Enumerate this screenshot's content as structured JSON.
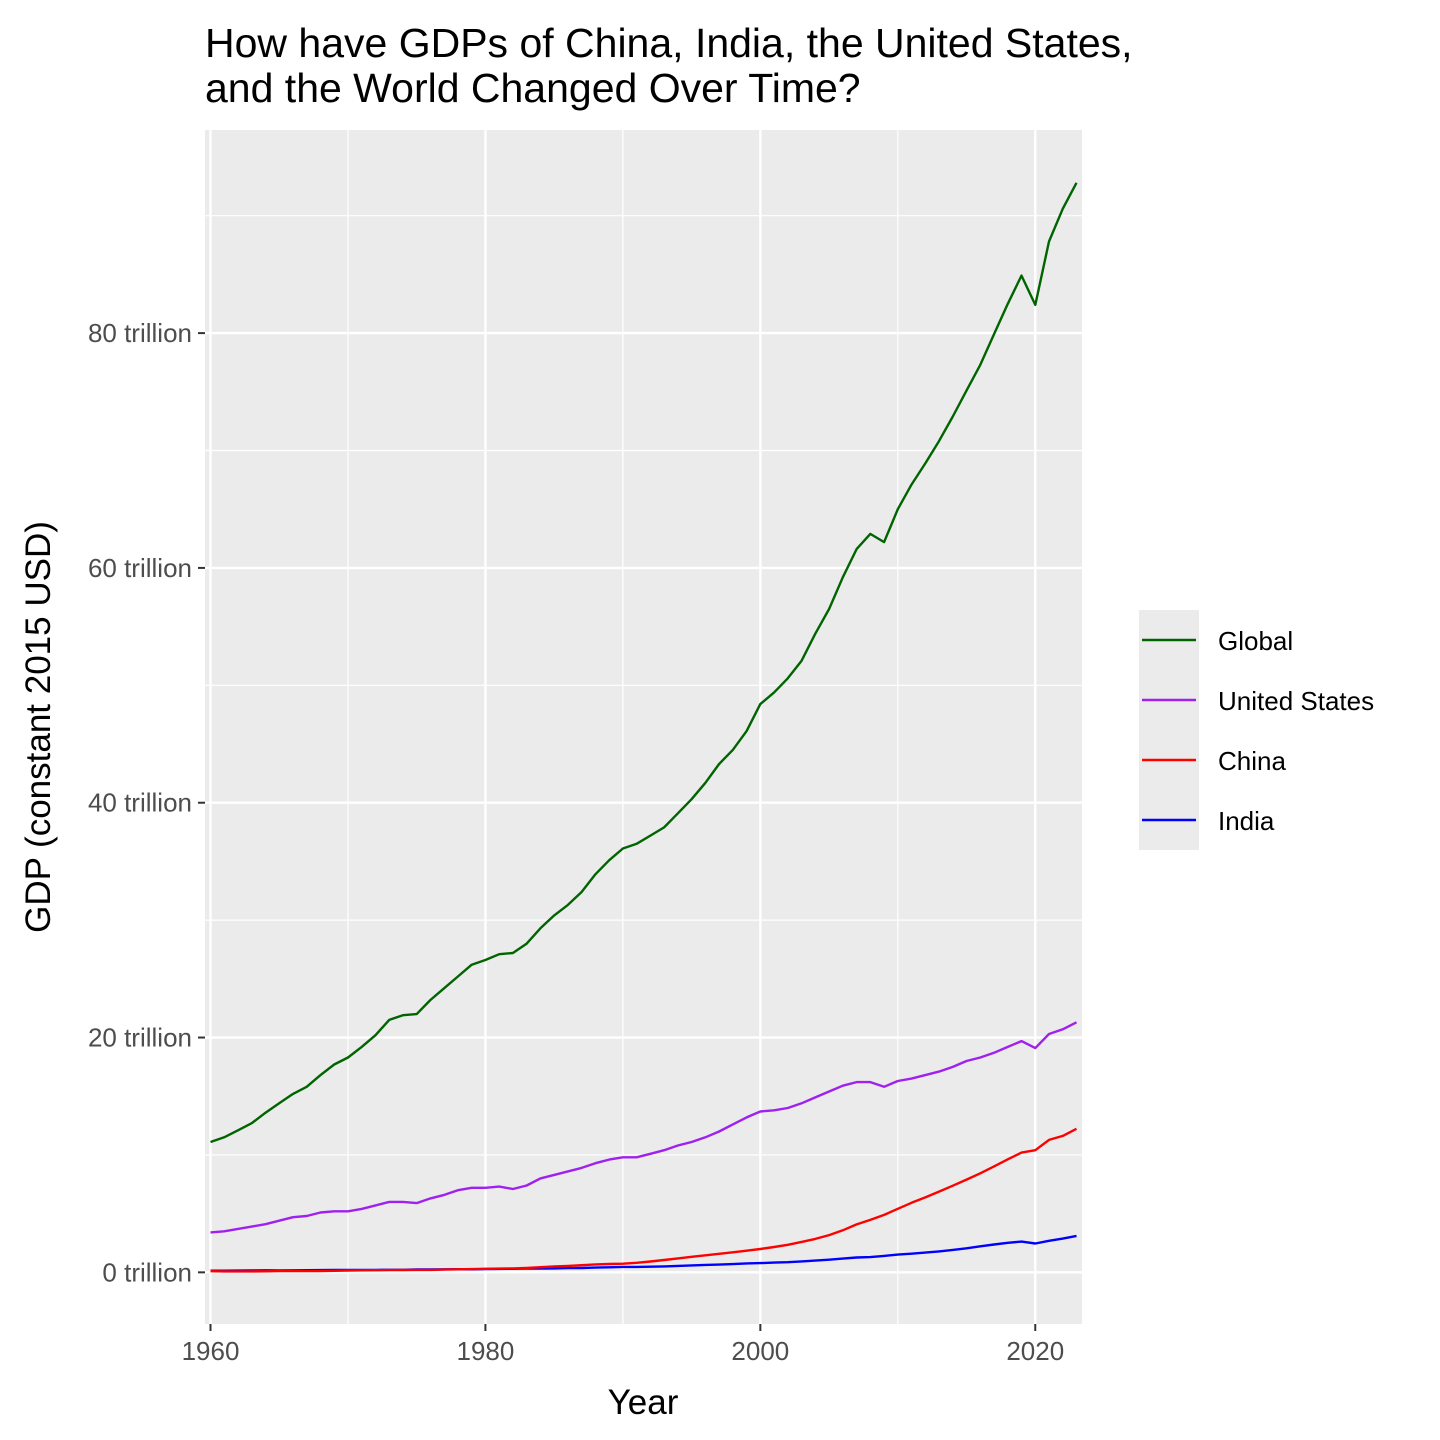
{
  "chart_data": {
    "type": "line",
    "title": [
      "How have GDPs of China, India, the United States,",
      "and the World Changed Over Time?"
    ],
    "xlabel": "Year",
    "ylabel": "GDP (constant 2015 USD)",
    "xlim": [
      1959.6,
      2023.4
    ],
    "ylim": [
      -4.4,
      97.3
    ],
    "x_ticks": [
      1960,
      1980,
      2000,
      2020
    ],
    "x_tick_labels": [
      "1960",
      "1980",
      "2000",
      "2020"
    ],
    "y_ticks": [
      0,
      20,
      40,
      60,
      80
    ],
    "y_tick_labels": [
      "0 trillion",
      "20 trillion",
      "40 trillion",
      "60 trillion",
      "80 trillion"
    ],
    "y_units": "trillion constant 2015 USD",
    "grid": true,
    "legend_position": "right",
    "legend_labels": [
      "Global",
      "United States",
      "China",
      "India"
    ],
    "x": [
      1960,
      1961,
      1962,
      1963,
      1964,
      1965,
      1966,
      1967,
      1968,
      1969,
      1970,
      1971,
      1972,
      1973,
      1974,
      1975,
      1976,
      1977,
      1978,
      1979,
      1980,
      1981,
      1982,
      1983,
      1984,
      1985,
      1986,
      1987,
      1988,
      1989,
      1990,
      1991,
      1992,
      1993,
      1994,
      1995,
      1996,
      1997,
      1998,
      1999,
      2000,
      2001,
      2002,
      2003,
      2004,
      2005,
      2006,
      2007,
      2008,
      2009,
      2010,
      2011,
      2012,
      2013,
      2014,
      2015,
      2016,
      2017,
      2018,
      2019,
      2020,
      2021,
      2022,
      2023
    ],
    "series": [
      {
        "name": "Global",
        "color": "#006400",
        "values": [
          11.1,
          11.5,
          12.1,
          12.7,
          13.6,
          14.4,
          15.2,
          15.8,
          16.8,
          17.7,
          18.3,
          19.2,
          20.2,
          21.5,
          21.9,
          22.0,
          23.2,
          24.2,
          25.2,
          26.2,
          26.6,
          27.1,
          27.2,
          28.0,
          29.3,
          30.4,
          31.3,
          32.4,
          33.9,
          35.1,
          36.1,
          36.5,
          37.2,
          37.9,
          39.1,
          40.3,
          41.7,
          43.3,
          44.5,
          46.1,
          48.4,
          49.4,
          50.6,
          52.1,
          54.4,
          56.5,
          59.2,
          61.6,
          62.9,
          62.2,
          65.0,
          67.1,
          68.9,
          70.8,
          72.9,
          75.1,
          77.3,
          79.9,
          82.5,
          84.9,
          82.4,
          87.8,
          90.6,
          92.8
        ]
      },
      {
        "name": "United States",
        "color": "#a020f0",
        "values": [
          3.4,
          3.5,
          3.7,
          3.9,
          4.1,
          4.4,
          4.7,
          4.8,
          5.1,
          5.2,
          5.2,
          5.4,
          5.7,
          6.0,
          6.0,
          5.9,
          6.3,
          6.6,
          7.0,
          7.2,
          7.2,
          7.3,
          7.1,
          7.4,
          8.0,
          8.3,
          8.6,
          8.9,
          9.3,
          9.6,
          9.8,
          9.8,
          10.1,
          10.4,
          10.8,
          11.1,
          11.5,
          12.0,
          12.6,
          13.2,
          13.7,
          13.8,
          14.0,
          14.4,
          14.9,
          15.4,
          15.9,
          16.2,
          16.2,
          15.8,
          16.3,
          16.5,
          16.8,
          17.1,
          17.5,
          18.0,
          18.3,
          18.7,
          19.2,
          19.7,
          19.1,
          20.3,
          20.7,
          21.3
        ]
      },
      {
        "name": "China",
        "color": "#ff0000",
        "values": [
          0.1,
          0.08,
          0.08,
          0.08,
          0.09,
          0.11,
          0.12,
          0.11,
          0.11,
          0.13,
          0.16,
          0.17,
          0.18,
          0.19,
          0.2,
          0.21,
          0.21,
          0.23,
          0.26,
          0.28,
          0.3,
          0.32,
          0.34,
          0.38,
          0.44,
          0.5,
          0.55,
          0.61,
          0.68,
          0.71,
          0.74,
          0.81,
          0.92,
          1.05,
          1.19,
          1.32,
          1.45,
          1.58,
          1.71,
          1.84,
          1.99,
          2.16,
          2.35,
          2.59,
          2.85,
          3.17,
          3.58,
          4.08,
          4.47,
          4.89,
          5.41,
          5.92,
          6.38,
          6.88,
          7.38,
          7.9,
          8.44,
          9.02,
          9.63,
          10.2,
          10.4,
          11.28,
          11.62,
          12.23
        ]
      },
      {
        "name": "India",
        "color": "#0000ff",
        "values": [
          0.14,
          0.14,
          0.15,
          0.16,
          0.17,
          0.16,
          0.17,
          0.18,
          0.19,
          0.2,
          0.21,
          0.21,
          0.21,
          0.22,
          0.22,
          0.24,
          0.24,
          0.26,
          0.27,
          0.26,
          0.28,
          0.29,
          0.3,
          0.32,
          0.33,
          0.34,
          0.36,
          0.37,
          0.4,
          0.43,
          0.46,
          0.46,
          0.48,
          0.51,
          0.55,
          0.59,
          0.63,
          0.66,
          0.7,
          0.76,
          0.79,
          0.83,
          0.86,
          0.93,
          1.0,
          1.08,
          1.17,
          1.26,
          1.3,
          1.4,
          1.51,
          1.59,
          1.68,
          1.78,
          1.91,
          2.05,
          2.22,
          2.37,
          2.52,
          2.62,
          2.46,
          2.69,
          2.87,
          3.1
        ]
      }
    ]
  },
  "colors": {
    "panel_background": "#ebebeb",
    "grid_major": "#ffffff",
    "axis_text": "#4d4d4d"
  }
}
